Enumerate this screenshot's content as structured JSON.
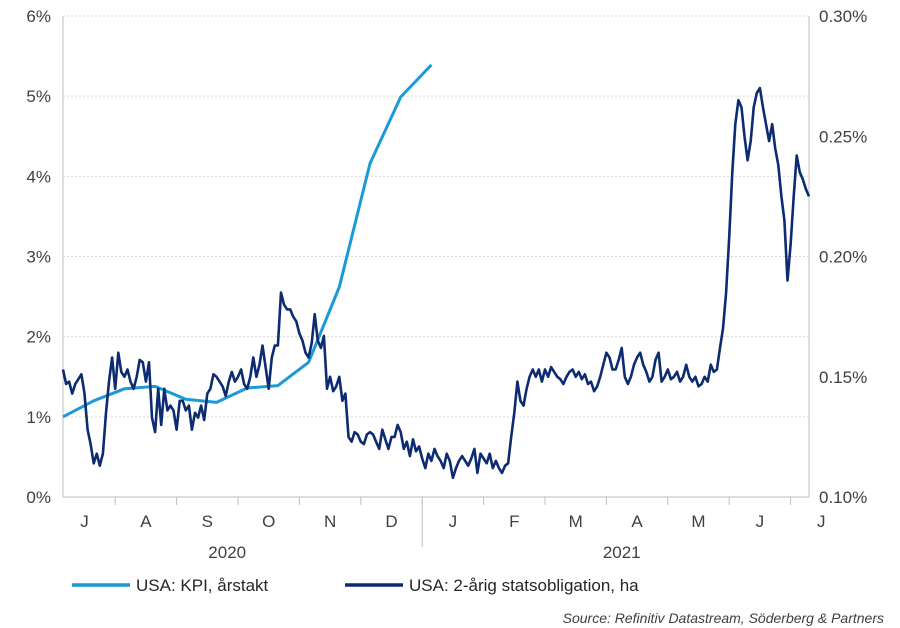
{
  "chart_data": {
    "type": "line",
    "left_axis": {
      "ylim": [
        0,
        6
      ],
      "ticks": [
        0,
        1,
        2,
        3,
        4,
        5,
        6
      ],
      "tick_labels": [
        "0%",
        "1%",
        "2%",
        "3%",
        "4%",
        "5%",
        "6%"
      ]
    },
    "right_axis": {
      "ylim": [
        0.1,
        0.3
      ],
      "ticks": [
        0.1,
        0.15,
        0.2,
        0.25,
        0.3
      ],
      "tick_labels": [
        "0.10%",
        "0.15%",
        "0.20%",
        "0.25%",
        "0.30%"
      ]
    },
    "x_months": [
      "J",
      "A",
      "S",
      "O",
      "N",
      "D",
      "J",
      "F",
      "M",
      "A",
      "M",
      "J",
      "J"
    ],
    "x_years": [
      {
        "label": "2020"
      },
      {
        "label": "2021"
      }
    ],
    "grid": "horizontal",
    "legend_placement": "bottom",
    "series": [
      {
        "name": "USA: KPI, årstakt",
        "axis": "left",
        "color": "#1a9ad6",
        "points": [
          [
            0.0,
            1.0
          ],
          [
            1.0,
            1.2
          ],
          [
            2.0,
            1.35
          ],
          [
            3.0,
            1.38
          ],
          [
            4.0,
            1.22
          ],
          [
            5.0,
            1.18
          ],
          [
            6.0,
            1.36
          ],
          [
            7.0,
            1.39
          ],
          [
            8.0,
            1.68
          ],
          [
            9.0,
            2.62
          ],
          [
            10.0,
            4.16
          ],
          [
            11.0,
            4.99
          ],
          [
            12.0,
            5.39
          ]
        ]
      },
      {
        "name": "USA: 2-årig statsobligation, ha",
        "axis": "right",
        "color": "#0d2b70",
        "points": [
          [
            0.0,
            0.153
          ],
          [
            0.1,
            0.147
          ],
          [
            0.2,
            0.148
          ],
          [
            0.3,
            0.143
          ],
          [
            0.4,
            0.147
          ],
          [
            0.5,
            0.149
          ],
          [
            0.6,
            0.151
          ],
          [
            0.7,
            0.143
          ],
          [
            0.8,
            0.128
          ],
          [
            0.9,
            0.122
          ],
          [
            1.0,
            0.114
          ],
          [
            1.1,
            0.118
          ],
          [
            1.2,
            0.113
          ],
          [
            1.3,
            0.118
          ],
          [
            1.4,
            0.135
          ],
          [
            1.5,
            0.148
          ],
          [
            1.6,
            0.158
          ],
          [
            1.7,
            0.145
          ],
          [
            1.8,
            0.16
          ],
          [
            1.9,
            0.152
          ],
          [
            2.0,
            0.15
          ],
          [
            2.1,
            0.153
          ],
          [
            2.2,
            0.148
          ],
          [
            2.3,
            0.145
          ],
          [
            2.4,
            0.15
          ],
          [
            2.5,
            0.157
          ],
          [
            2.6,
            0.156
          ],
          [
            2.7,
            0.148
          ],
          [
            2.8,
            0.156
          ],
          [
            2.9,
            0.133
          ],
          [
            3.0,
            0.127
          ],
          [
            3.1,
            0.145
          ],
          [
            3.2,
            0.13
          ],
          [
            3.3,
            0.145
          ],
          [
            3.4,
            0.136
          ],
          [
            3.5,
            0.138
          ],
          [
            3.6,
            0.136
          ],
          [
            3.7,
            0.128
          ],
          [
            3.8,
            0.14
          ],
          [
            3.9,
            0.14
          ],
          [
            4.0,
            0.136
          ],
          [
            4.1,
            0.138
          ],
          [
            4.2,
            0.128
          ],
          [
            4.3,
            0.135
          ],
          [
            4.4,
            0.133
          ],
          [
            4.5,
            0.138
          ],
          [
            4.6,
            0.132
          ],
          [
            4.7,
            0.143
          ],
          [
            4.8,
            0.145
          ],
          [
            4.9,
            0.151
          ],
          [
            5.0,
            0.15
          ],
          [
            5.1,
            0.148
          ],
          [
            5.2,
            0.146
          ],
          [
            5.3,
            0.142
          ],
          [
            5.4,
            0.148
          ],
          [
            5.5,
            0.152
          ],
          [
            5.6,
            0.148
          ],
          [
            5.7,
            0.15
          ],
          [
            5.8,
            0.153
          ],
          [
            5.9,
            0.147
          ],
          [
            6.0,
            0.145
          ],
          [
            6.1,
            0.15
          ],
          [
            6.2,
            0.158
          ],
          [
            6.3,
            0.15
          ],
          [
            6.4,
            0.155
          ],
          [
            6.5,
            0.163
          ],
          [
            6.6,
            0.154
          ],
          [
            6.7,
            0.145
          ],
          [
            6.8,
            0.158
          ],
          [
            6.9,
            0.163
          ],
          [
            7.0,
            0.163
          ],
          [
            7.1,
            0.185
          ],
          [
            7.2,
            0.18
          ],
          [
            7.3,
            0.178
          ],
          [
            7.4,
            0.178
          ],
          [
            7.5,
            0.175
          ],
          [
            7.6,
            0.173
          ],
          [
            7.7,
            0.168
          ],
          [
            7.8,
            0.165
          ],
          [
            7.9,
            0.16
          ],
          [
            8.0,
            0.158
          ],
          [
            8.1,
            0.164
          ],
          [
            8.2,
            0.176
          ],
          [
            8.3,
            0.165
          ],
          [
            8.4,
            0.162
          ],
          [
            8.5,
            0.167
          ],
          [
            8.6,
            0.145
          ],
          [
            8.7,
            0.15
          ],
          [
            8.8,
            0.144
          ],
          [
            8.9,
            0.146
          ],
          [
            9.0,
            0.15
          ],
          [
            9.1,
            0.14
          ],
          [
            9.2,
            0.143
          ],
          [
            9.3,
            0.125
          ],
          [
            9.4,
            0.123
          ],
          [
            9.5,
            0.127
          ],
          [
            9.6,
            0.126
          ],
          [
            9.7,
            0.123
          ],
          [
            9.8,
            0.122
          ],
          [
            9.9,
            0.126
          ],
          [
            10.0,
            0.127
          ],
          [
            10.1,
            0.126
          ],
          [
            10.2,
            0.123
          ],
          [
            10.3,
            0.12
          ],
          [
            10.4,
            0.128
          ],
          [
            10.5,
            0.124
          ],
          [
            10.6,
            0.12
          ],
          [
            10.7,
            0.125
          ],
          [
            10.8,
            0.125
          ],
          [
            10.9,
            0.13
          ],
          [
            11.0,
            0.127
          ],
          [
            11.1,
            0.12
          ],
          [
            11.2,
            0.123
          ],
          [
            11.3,
            0.117
          ],
          [
            11.4,
            0.124
          ],
          [
            11.5,
            0.119
          ],
          [
            11.6,
            0.121
          ],
          [
            11.7,
            0.116
          ],
          [
            11.8,
            0.112
          ],
          [
            11.9,
            0.118
          ],
          [
            12.0,
            0.115
          ],
          [
            12.1,
            0.12
          ],
          [
            12.2,
            0.117
          ],
          [
            12.3,
            0.115
          ],
          [
            12.4,
            0.112
          ],
          [
            12.5,
            0.118
          ],
          [
            12.6,
            0.115
          ],
          [
            12.7,
            0.108
          ],
          [
            12.8,
            0.112
          ],
          [
            12.9,
            0.115
          ],
          [
            13.0,
            0.117
          ],
          [
            13.1,
            0.115
          ],
          [
            13.2,
            0.113
          ],
          [
            13.3,
            0.116
          ],
          [
            13.4,
            0.12
          ],
          [
            13.5,
            0.11
          ],
          [
            13.6,
            0.118
          ],
          [
            13.7,
            0.116
          ],
          [
            13.8,
            0.114
          ],
          [
            13.9,
            0.118
          ],
          [
            14.0,
            0.112
          ],
          [
            14.1,
            0.115
          ],
          [
            14.2,
            0.112
          ],
          [
            14.3,
            0.11
          ],
          [
            14.4,
            0.113
          ],
          [
            14.5,
            0.114
          ],
          [
            14.6,
            0.125
          ],
          [
            14.7,
            0.135
          ],
          [
            14.8,
            0.148
          ],
          [
            14.9,
            0.14
          ],
          [
            15.0,
            0.138
          ],
          [
            15.1,
            0.145
          ],
          [
            15.2,
            0.15
          ],
          [
            15.3,
            0.153
          ],
          [
            15.4,
            0.15
          ],
          [
            15.5,
            0.153
          ],
          [
            15.6,
            0.148
          ],
          [
            15.7,
            0.153
          ],
          [
            15.8,
            0.15
          ],
          [
            15.9,
            0.154
          ],
          [
            16.0,
            0.152
          ],
          [
            16.1,
            0.15
          ],
          [
            16.2,
            0.149
          ],
          [
            16.3,
            0.147
          ],
          [
            16.4,
            0.15
          ],
          [
            16.5,
            0.152
          ],
          [
            16.6,
            0.153
          ],
          [
            16.7,
            0.15
          ],
          [
            16.8,
            0.152
          ],
          [
            16.9,
            0.149
          ],
          [
            17.0,
            0.151
          ],
          [
            17.1,
            0.147
          ],
          [
            17.2,
            0.148
          ],
          [
            17.3,
            0.144
          ],
          [
            17.4,
            0.146
          ],
          [
            17.5,
            0.15
          ],
          [
            17.6,
            0.155
          ],
          [
            17.7,
            0.16
          ],
          [
            17.8,
            0.158
          ],
          [
            17.9,
            0.153
          ],
          [
            18.0,
            0.153
          ],
          [
            18.1,
            0.157
          ],
          [
            18.2,
            0.162
          ],
          [
            18.3,
            0.15
          ],
          [
            18.4,
            0.147
          ],
          [
            18.5,
            0.15
          ],
          [
            18.6,
            0.155
          ],
          [
            18.7,
            0.158
          ],
          [
            18.8,
            0.16
          ],
          [
            18.9,
            0.155
          ],
          [
            19.0,
            0.152
          ],
          [
            19.1,
            0.148
          ],
          [
            19.2,
            0.15
          ],
          [
            19.3,
            0.157
          ],
          [
            19.4,
            0.16
          ],
          [
            19.5,
            0.148
          ],
          [
            19.6,
            0.15
          ],
          [
            19.7,
            0.153
          ],
          [
            19.8,
            0.149
          ],
          [
            19.9,
            0.15
          ],
          [
            20.0,
            0.152
          ],
          [
            20.1,
            0.148
          ],
          [
            20.2,
            0.15
          ],
          [
            20.3,
            0.155
          ],
          [
            20.4,
            0.15
          ],
          [
            20.5,
            0.148
          ],
          [
            20.6,
            0.15
          ],
          [
            20.7,
            0.146
          ],
          [
            20.8,
            0.147
          ],
          [
            20.9,
            0.15
          ],
          [
            21.0,
            0.148
          ],
          [
            21.1,
            0.155
          ],
          [
            21.2,
            0.152
          ],
          [
            21.3,
            0.153
          ],
          [
            21.4,
            0.162
          ],
          [
            21.5,
            0.17
          ],
          [
            21.6,
            0.185
          ],
          [
            21.7,
            0.208
          ],
          [
            21.8,
            0.235
          ],
          [
            21.9,
            0.255
          ],
          [
            22.0,
            0.265
          ],
          [
            22.1,
            0.262
          ],
          [
            22.2,
            0.25
          ],
          [
            22.3,
            0.24
          ],
          [
            22.4,
            0.248
          ],
          [
            22.5,
            0.262
          ],
          [
            22.6,
            0.268
          ],
          [
            22.7,
            0.27
          ],
          [
            22.8,
            0.262
          ],
          [
            22.9,
            0.255
          ],
          [
            23.0,
            0.248
          ],
          [
            23.1,
            0.255
          ],
          [
            23.2,
            0.245
          ],
          [
            23.3,
            0.238
          ],
          [
            23.4,
            0.225
          ],
          [
            23.5,
            0.215
          ],
          [
            23.6,
            0.19
          ],
          [
            23.7,
            0.205
          ],
          [
            23.8,
            0.225
          ],
          [
            23.9,
            0.242
          ],
          [
            24.0,
            0.235
          ],
          [
            24.1,
            0.232
          ],
          [
            24.2,
            0.228
          ],
          [
            24.3,
            0.225
          ]
        ]
      }
    ],
    "legend": [
      {
        "label": "USA: KPI, årstakt",
        "color": "#1a9ad6"
      },
      {
        "label": "USA: 2-årig statsobligation, ha",
        "color": "#0d2b70"
      }
    ],
    "source": "Source: Refinitiv Datastream, Söderberg & Partners"
  }
}
